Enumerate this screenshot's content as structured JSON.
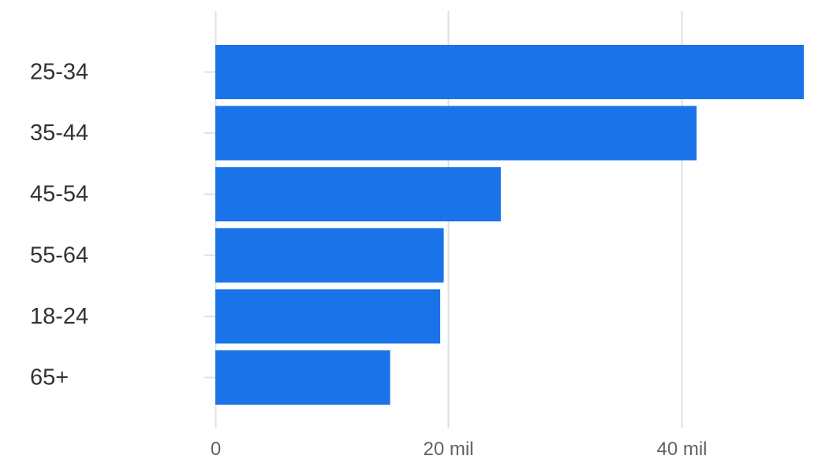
{
  "chart_data": {
    "type": "bar",
    "orientation": "horizontal",
    "categories": [
      "25-34",
      "35-44",
      "45-54",
      "55-64",
      "18-24",
      "65+"
    ],
    "values": [
      50500,
      41300,
      24500,
      19600,
      19300,
      15000
    ],
    "x_ticks": [
      {
        "value": 0,
        "label": "0"
      },
      {
        "value": 20000,
        "label": "20 mil"
      },
      {
        "value": 40000,
        "label": "40 mil"
      }
    ],
    "xlim": [
      0,
      50500
    ],
    "grid": true,
    "legend": "none",
    "title": "",
    "xlabel": "",
    "ylabel": "",
    "colors": {
      "bar": "#1a73e8",
      "grid": "#e0e0e0",
      "category_text": "#333333",
      "tick_text": "#5f6368"
    }
  }
}
